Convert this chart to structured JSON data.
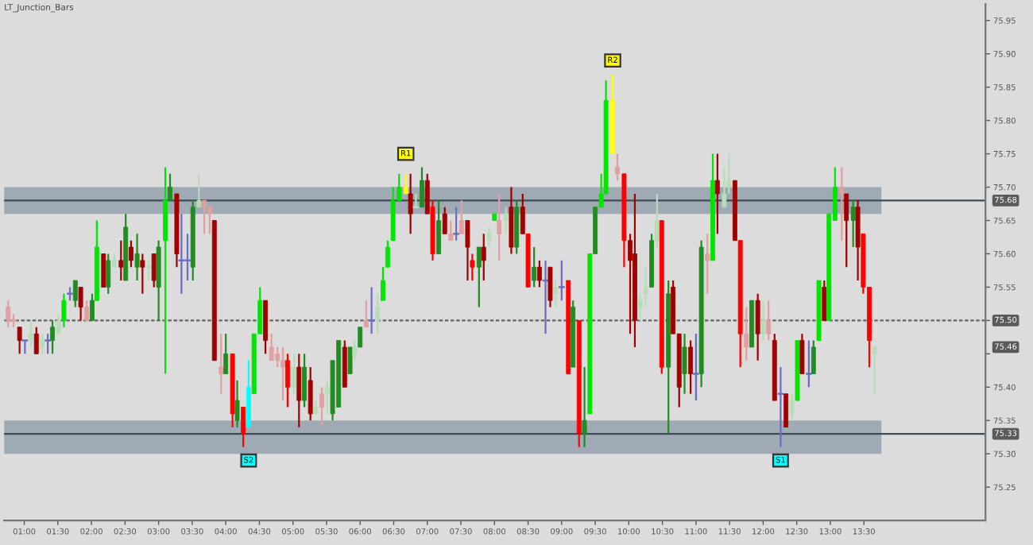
{
  "chart_data": {
    "type": "candlestick",
    "title": "LT_Junction_Bars",
    "x": [
      0.76,
      0.84,
      0.93,
      1.01,
      1.1,
      1.18,
      1.27,
      1.35,
      1.42,
      1.51,
      1.59,
      1.68,
      1.76,
      1.84,
      1.93,
      2.01,
      2.08,
      2.18,
      2.25,
      2.34,
      2.44,
      2.51,
      2.59,
      2.68,
      2.76,
      2.85,
      2.93,
      3.0,
      3.1,
      3.17,
      3.27,
      3.34,
      3.43,
      3.51,
      3.6,
      3.68,
      3.76,
      3.83,
      3.93,
      4.0,
      4.1,
      4.17,
      4.26,
      4.34,
      4.42,
      4.51,
      4.59,
      4.68,
      4.77,
      4.85,
      4.92,
      5.02,
      5.09,
      5.17,
      5.26,
      5.34,
      5.43,
      5.51,
      5.59,
      5.68,
      5.77,
      5.85,
      5.92,
      6.0,
      6.09,
      6.17,
      6.26,
      6.34,
      6.41,
      6.49,
      6.58,
      6.68,
      6.75,
      6.83,
      6.92,
      7.0,
      7.08,
      7.17,
      7.26,
      7.35,
      7.43,
      7.51,
      7.6,
      7.67,
      7.77,
      7.84,
      7.92,
      8.0,
      8.07,
      8.17,
      8.25,
      8.33,
      8.42,
      8.5,
      8.59,
      8.67,
      8.76,
      8.83,
      8.91,
      9.0,
      9.1,
      9.17,
      9.26,
      9.34,
      9.42,
      9.5,
      9.59,
      9.66,
      9.76,
      9.83,
      9.93,
      10.02,
      10.09,
      10.17,
      10.25,
      10.34,
      10.42,
      10.49,
      10.59,
      10.66,
      10.75,
      10.83,
      10.92,
      11.0,
      11.08,
      11.17,
      11.25,
      11.32,
      11.42,
      11.49,
      11.58,
      11.66,
      11.75,
      11.83,
      11.92,
      12.0,
      12.08,
      12.17,
      12.26,
      12.34,
      12.43,
      12.51,
      12.58,
      12.68,
      12.75,
      12.83,
      12.91,
      12.98,
      13.07,
      13.17,
      13.24,
      13.34,
      13.41,
      13.49,
      13.58,
      13.66
    ],
    "ohlc": [
      [
        75.52,
        75.53,
        75.49,
        75.5
      ],
      [
        75.5,
        75.51,
        75.49,
        75.5
      ],
      [
        75.49,
        75.49,
        75.45,
        75.47
      ],
      [
        75.47,
        75.47,
        75.45,
        75.47
      ],
      [
        75.47,
        75.5,
        75.46,
        75.48
      ],
      [
        75.48,
        75.49,
        75.45,
        75.45
      ],
      [
        75.46,
        75.48,
        75.45,
        75.47
      ],
      [
        75.47,
        75.48,
        75.45,
        75.47
      ],
      [
        75.47,
        75.5,
        75.45,
        75.49
      ],
      [
        75.48,
        75.51,
        75.48,
        75.5
      ],
      [
        75.5,
        75.54,
        75.49,
        75.53
      ],
      [
        75.54,
        75.55,
        75.53,
        75.54
      ],
      [
        75.53,
        75.56,
        75.52,
        75.56
      ],
      [
        75.55,
        75.55,
        75.5,
        75.52
      ],
      [
        75.52,
        75.53,
        75.5,
        75.5
      ],
      [
        75.5,
        75.54,
        75.5,
        75.53
      ],
      [
        75.53,
        75.65,
        75.53,
        75.61
      ],
      [
        75.6,
        75.6,
        75.55,
        75.55
      ],
      [
        75.55,
        75.6,
        75.54,
        75.59
      ],
      [
        75.58,
        75.6,
        75.58,
        75.59
      ],
      [
        75.59,
        75.62,
        75.56,
        75.58
      ],
      [
        75.56,
        75.66,
        75.56,
        75.64
      ],
      [
        75.61,
        75.62,
        75.58,
        75.59
      ],
      [
        75.58,
        75.63,
        75.56,
        75.6
      ],
      [
        75.59,
        75.6,
        75.54,
        75.58
      ],
      [
        75.58,
        75.59,
        75.56,
        75.58
      ],
      [
        75.6,
        75.6,
        75.55,
        75.56
      ],
      [
        75.55,
        75.62,
        75.5,
        75.61
      ],
      [
        75.62,
        75.73,
        75.42,
        75.68
      ],
      [
        75.68,
        75.72,
        75.68,
        75.7
      ],
      [
        75.69,
        75.69,
        75.58,
        75.6
      ],
      [
        75.59,
        75.66,
        75.54,
        75.59
      ],
      [
        75.59,
        75.63,
        75.56,
        75.59
      ],
      [
        75.58,
        75.68,
        75.56,
        75.67
      ],
      [
        75.67,
        75.72,
        75.67,
        75.68
      ],
      [
        75.68,
        75.68,
        75.63,
        75.67
      ],
      [
        75.67,
        75.67,
        75.63,
        75.66
      ],
      [
        75.65,
        75.65,
        75.44,
        75.44
      ],
      [
        75.43,
        75.48,
        75.39,
        75.42
      ],
      [
        75.42,
        75.48,
        75.42,
        75.45
      ],
      [
        75.45,
        75.45,
        75.34,
        75.36
      ],
      [
        75.35,
        75.41,
        75.34,
        75.38
      ],
      [
        75.37,
        75.37,
        75.31,
        75.33
      ],
      [
        75.34,
        75.44,
        75.34,
        75.4
      ],
      [
        75.39,
        75.48,
        75.39,
        75.48
      ],
      [
        75.48,
        75.55,
        75.48,
        75.53
      ],
      [
        75.53,
        75.53,
        75.45,
        75.47
      ],
      [
        75.46,
        75.48,
        75.44,
        75.44
      ],
      [
        75.45,
        75.46,
        75.43,
        75.44
      ],
      [
        75.44,
        75.46,
        75.38,
        75.43
      ],
      [
        75.44,
        75.45,
        75.37,
        75.4
      ],
      [
        75.4,
        75.45,
        75.39,
        75.43
      ],
      [
        75.43,
        75.45,
        75.34,
        75.38
      ],
      [
        75.38,
        75.45,
        75.37,
        75.43
      ],
      [
        75.41,
        75.43,
        75.35,
        75.36
      ],
      [
        75.36,
        75.38,
        75.36,
        75.37
      ],
      [
        75.39,
        75.4,
        75.34,
        75.37
      ],
      [
        75.39,
        75.41,
        75.36,
        75.4
      ],
      [
        75.36,
        75.44,
        75.35,
        75.44
      ],
      [
        75.37,
        75.47,
        75.37,
        75.47
      ],
      [
        75.46,
        75.47,
        75.4,
        75.4
      ],
      [
        75.42,
        75.46,
        75.42,
        75.46
      ],
      [
        75.45,
        75.47,
        75.44,
        75.46
      ],
      [
        75.46,
        75.49,
        75.46,
        75.49
      ],
      [
        75.5,
        75.53,
        75.49,
        75.49
      ],
      [
        75.5,
        75.55,
        75.48,
        75.5
      ],
      [
        75.5,
        75.54,
        75.48,
        75.52
      ],
      [
        75.53,
        75.58,
        75.53,
        75.56
      ],
      [
        75.58,
        75.62,
        75.58,
        75.61
      ],
      [
        75.62,
        75.7,
        75.62,
        75.68
      ],
      [
        75.68,
        75.72,
        75.68,
        75.7
      ],
      [
        75.69,
        75.72,
        75.69,
        75.7
      ],
      [
        75.69,
        75.72,
        75.63,
        75.66
      ],
      [
        75.67,
        75.69,
        75.67,
        75.67
      ],
      [
        75.67,
        75.73,
        75.67,
        75.71
      ],
      [
        75.71,
        75.72,
        75.66,
        75.66
      ],
      [
        75.67,
        75.68,
        75.59,
        75.6
      ],
      [
        75.6,
        75.68,
        75.6,
        75.65
      ],
      [
        75.66,
        75.67,
        75.63,
        75.63
      ],
      [
        75.63,
        75.65,
        75.62,
        75.62
      ],
      [
        75.63,
        75.67,
        75.62,
        75.63
      ],
      [
        75.65,
        75.68,
        75.63,
        75.63
      ],
      [
        75.65,
        75.65,
        75.56,
        75.61
      ],
      [
        75.59,
        75.6,
        75.56,
        75.58
      ],
      [
        75.58,
        75.61,
        75.52,
        75.61
      ],
      [
        75.61,
        75.63,
        75.56,
        75.59
      ],
      [
        75.62,
        75.64,
        75.61,
        75.63
      ],
      [
        75.65,
        75.66,
        75.65,
        75.66
      ],
      [
        75.65,
        75.69,
        75.59,
        75.63
      ],
      [
        75.65,
        75.67,
        75.63,
        75.66
      ],
      [
        75.67,
        75.7,
        75.6,
        75.61
      ],
      [
        75.61,
        75.68,
        75.6,
        75.67
      ],
      [
        75.67,
        75.69,
        75.63,
        75.63
      ],
      [
        75.63,
        75.63,
        75.55,
        75.55
      ],
      [
        75.56,
        75.61,
        75.55,
        75.58
      ],
      [
        75.58,
        75.59,
        75.55,
        75.56
      ],
      [
        75.56,
        75.59,
        75.48,
        75.56
      ],
      [
        75.58,
        75.58,
        75.52,
        75.53
      ],
      [
        75.54,
        75.56,
        75.52,
        75.55
      ],
      [
        75.55,
        75.59,
        75.53,
        75.55
      ],
      [
        75.56,
        75.56,
        75.42,
        75.42
      ],
      [
        75.43,
        75.53,
        75.43,
        75.52
      ],
      [
        75.5,
        75.5,
        75.31,
        75.33
      ],
      [
        75.33,
        75.43,
        75.31,
        75.35
      ],
      [
        75.36,
        75.6,
        75.36,
        75.6
      ],
      [
        75.6,
        75.67,
        75.6,
        75.67
      ],
      [
        75.67,
        75.72,
        75.67,
        75.69
      ],
      [
        75.69,
        75.86,
        75.69,
        75.83
      ],
      [
        75.83,
        75.87,
        75.75,
        75.75
      ],
      [
        75.73,
        75.75,
        75.71,
        75.72
      ],
      [
        75.72,
        75.72,
        75.58,
        75.62
      ],
      [
        75.62,
        75.63,
        75.48,
        75.59
      ],
      [
        75.6,
        75.69,
        75.46,
        75.5
      ],
      [
        75.52,
        75.54,
        75.5,
        75.53
      ],
      [
        75.54,
        75.58,
        75.52,
        75.55
      ],
      [
        75.55,
        75.63,
        75.55,
        75.62
      ],
      [
        75.62,
        75.69,
        75.61,
        75.65
      ],
      [
        75.65,
        75.65,
        75.42,
        75.43
      ],
      [
        75.43,
        75.56,
        75.33,
        75.54
      ],
      [
        75.55,
        75.56,
        75.48,
        75.48
      ],
      [
        75.48,
        75.48,
        75.37,
        75.4
      ],
      [
        75.42,
        75.48,
        75.39,
        75.46
      ],
      [
        75.46,
        75.47,
        75.39,
        75.42
      ],
      [
        75.42,
        75.48,
        75.38,
        75.42
      ],
      [
        75.42,
        75.62,
        75.4,
        75.61
      ],
      [
        75.6,
        75.63,
        75.54,
        75.59
      ],
      [
        75.59,
        75.75,
        75.59,
        75.71
      ],
      [
        75.71,
        75.75,
        75.63,
        75.69
      ],
      [
        75.67,
        75.73,
        75.67,
        75.69
      ],
      [
        75.7,
        75.75,
        75.69,
        75.71
      ],
      [
        75.71,
        75.71,
        75.62,
        75.62
      ],
      [
        75.62,
        75.62,
        75.43,
        75.48
      ],
      [
        75.48,
        75.52,
        75.44,
        75.46
      ],
      [
        75.46,
        75.53,
        75.46,
        75.53
      ],
      [
        75.53,
        75.54,
        75.44,
        75.48
      ],
      [
        75.48,
        75.53,
        75.47,
        75.5
      ],
      [
        75.5,
        75.53,
        75.47,
        75.48
      ],
      [
        75.47,
        75.48,
        75.38,
        75.38
      ],
      [
        75.39,
        75.43,
        75.31,
        75.39
      ],
      [
        75.39,
        75.39,
        75.34,
        75.34
      ],
      [
        75.36,
        75.39,
        75.35,
        75.38
      ],
      [
        75.38,
        75.47,
        75.38,
        75.47
      ],
      [
        75.47,
        75.48,
        75.42,
        75.42
      ],
      [
        75.42,
        75.47,
        75.4,
        75.42
      ],
      [
        75.42,
        75.47,
        75.42,
        75.46
      ],
      [
        75.47,
        75.56,
        75.47,
        75.56
      ],
      [
        75.55,
        75.56,
        75.5,
        75.5
      ],
      [
        75.5,
        75.66,
        75.5,
        75.66
      ],
      [
        75.65,
        75.73,
        75.65,
        75.7
      ],
      [
        75.7,
        75.73,
        75.62,
        75.69
      ],
      [
        75.69,
        75.69,
        75.58,
        75.65
      ],
      [
        75.65,
        75.68,
        75.61,
        75.67
      ],
      [
        75.67,
        75.68,
        75.56,
        75.61
      ],
      [
        75.63,
        75.63,
        75.54,
        75.55
      ],
      [
        75.55,
        75.55,
        75.43,
        75.47
      ],
      [
        75.45,
        75.46,
        75.39,
        75.46
      ]
    ],
    "colors": [
      "#e0a0a0",
      "#e0a0a0",
      "#a00000",
      "#6b6bc8",
      "#b8dcb8",
      "#a00000",
      "#b8dcb8",
      "#6b6bc8",
      "#228b22",
      "#b8dcb8",
      "#00e600",
      "#6b6bc8",
      "#228b22",
      "#a00000",
      "#e0a0a0",
      "#228b22",
      "#00e600",
      "#a00000",
      "#228b22",
      "#b8dcb8",
      "#a00000",
      "#228b22",
      "#a00000",
      "#228b22",
      "#a00000",
      "#b8dcb8",
      "#a00000",
      "#228b22",
      "#00e600",
      "#228b22",
      "#a00000",
      "#6b6bc8",
      "#6b6bc8",
      "#228b22",
      "#b8dcb8",
      "#e0a0a0",
      "#e0a0a0",
      "#a00000",
      "#e0a0a0",
      "#228b22",
      "#ff0000",
      "#228b22",
      "#ff0000",
      "#00ffff",
      "#00e600",
      "#00e600",
      "#a00000",
      "#e0a0a0",
      "#e0a0a0",
      "#e0a0a0",
      "#ff0000",
      "#b8dcb8",
      "#a00000",
      "#228b22",
      "#a00000",
      "#b8dcb8",
      "#e0a0a0",
      "#b8dcb8",
      "#228b22",
      "#228b22",
      "#a00000",
      "#228b22",
      "#b8dcb8",
      "#228b22",
      "#e0a0a0",
      "#6b6bc8",
      "#b8dcb8",
      "#00e600",
      "#00e600",
      "#00e600",
      "#00e600",
      "#ffff00",
      "#a00000",
      "#b8dcb8",
      "#228b22",
      "#a00000",
      "#ff0000",
      "#228b22",
      "#a00000",
      "#e0a0a0",
      "#6b6bc8",
      "#e0a0a0",
      "#a00000",
      "#ff0000",
      "#228b22",
      "#a00000",
      "#b8dcb8",
      "#00e600",
      "#e0a0a0",
      "#b8dcb8",
      "#a00000",
      "#228b22",
      "#a00000",
      "#ff0000",
      "#228b22",
      "#a00000",
      "#6b6bc8",
      "#a00000",
      "#b8dcb8",
      "#6b6bc8",
      "#ff0000",
      "#228b22",
      "#ff0000",
      "#228b22",
      "#00e600",
      "#228b22",
      "#00e600",
      "#00e600",
      "#ffff00",
      "#e0a0a0",
      "#ff0000",
      "#a00000",
      "#a00000",
      "#b8dcb8",
      "#b8dcb8",
      "#228b22",
      "#b8dcb8",
      "#ff0000",
      "#228b22",
      "#a00000",
      "#a00000",
      "#228b22",
      "#a00000",
      "#6b6bc8",
      "#228b22",
      "#e0a0a0",
      "#00e600",
      "#a00000",
      "#b8dcb8",
      "#b8dcb8",
      "#a00000",
      "#ff0000",
      "#e0a0a0",
      "#228b22",
      "#a00000",
      "#b8dcb8",
      "#e0a0a0",
      "#a00000",
      "#6b6bc8",
      "#a00000",
      "#b8dcb8",
      "#00e600",
      "#a00000",
      "#6b6bc8",
      "#228b22",
      "#00e600",
      "#a00000",
      "#00e600",
      "#00e600",
      "#e0a0a0",
      "#a00000",
      "#228b22",
      "#a00000",
      "#ff0000",
      "#ff0000",
      "#b8dcb8"
    ],
    "xlim": [
      0.7,
      15.31
    ],
    "ylim": [
      75.2,
      75.975
    ],
    "xticks": [
      {
        "value": 1.0,
        "label": "01:00"
      },
      {
        "value": 1.5,
        "label": "01:30"
      },
      {
        "value": 2.0,
        "label": "02:00"
      },
      {
        "value": 2.5,
        "label": "02:30"
      },
      {
        "value": 3.0,
        "label": "03:00"
      },
      {
        "value": 3.5,
        "label": "03:30"
      },
      {
        "value": 4.0,
        "label": "04:00"
      },
      {
        "value": 4.5,
        "label": "04:30"
      },
      {
        "value": 5.0,
        "label": "05:00"
      },
      {
        "value": 5.5,
        "label": "05:30"
      },
      {
        "value": 6.0,
        "label": "06:00"
      },
      {
        "value": 6.5,
        "label": "06:30"
      },
      {
        "value": 7.0,
        "label": "07:00"
      },
      {
        "value": 7.5,
        "label": "07:30"
      },
      {
        "value": 8.0,
        "label": "08:00"
      },
      {
        "value": 8.5,
        "label": "08:30"
      },
      {
        "value": 9.0,
        "label": "09:00"
      },
      {
        "value": 9.5,
        "label": "09:30"
      },
      {
        "value": 10.0,
        "label": "10:00"
      },
      {
        "value": 10.5,
        "label": "10:30"
      },
      {
        "value": 11.0,
        "label": "11:00"
      },
      {
        "value": 11.5,
        "label": "11:30"
      },
      {
        "value": 12.0,
        "label": "12:00"
      },
      {
        "value": 12.5,
        "label": "12:30"
      },
      {
        "value": 13.0,
        "label": "13:00"
      },
      {
        "value": 13.5,
        "label": "13:30"
      }
    ],
    "yticks": [
      75.25,
      {
        "value": 75.3,
        "label": "75.30"
      },
      75.35,
      {
        "value": 75.4,
        "label": "75.40"
      },
      {
        "value": 75.45,
        "label": null
      },
      {
        "value": 75.5,
        "label": "75.50"
      },
      75.55,
      {
        "value": 75.6,
        "label": "75.60"
      },
      75.65,
      {
        "value": 75.7,
        "label": "75.70"
      },
      75.75,
      {
        "value": 75.8,
        "label": "75.80"
      },
      75.85,
      {
        "value": 75.9,
        "label": "75.90"
      },
      75.95
    ],
    "bands": [
      {
        "axis": "y",
        "from": 75.66,
        "to": 75.7,
        "color": "#8c9aa8"
      },
      {
        "axis": "y",
        "from": 75.3,
        "to": 75.35,
        "color": "#8c9aa8"
      }
    ],
    "ref_lines": [
      {
        "axis": "y",
        "value": 75.68,
        "label": "75.68",
        "color": "#3c4c58",
        "line_style": "solid"
      },
      {
        "axis": "y",
        "value": 75.33,
        "label": "75.33",
        "color": "#3c4c58",
        "line_style": "solid"
      },
      {
        "axis": "y",
        "value": 75.5,
        "label": "75.50",
        "color": "#666666",
        "line_style": "dashed"
      }
    ],
    "annotations": [
      {
        "text": "R1",
        "x": 6.68,
        "y": 75.75
      },
      {
        "text": "R2",
        "x": 9.76,
        "y": 75.89
      },
      {
        "text": "S2",
        "x": 4.34,
        "y": 75.29
      },
      {
        "text": "S1",
        "x": 12.26,
        "y": 75.29
      },
      "75.46"
    ],
    "grid": false
  }
}
